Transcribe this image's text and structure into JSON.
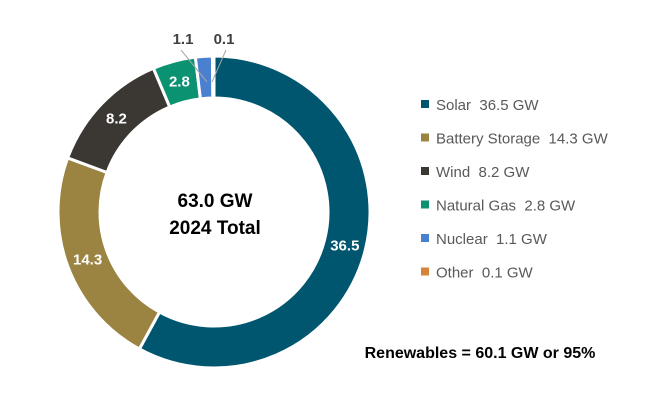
{
  "chart_data": {
    "type": "pie",
    "style": "donut",
    "center_text": [
      "63.0 GW",
      "2024 Total"
    ],
    "categories": [
      "Solar",
      "Battery Storage",
      "Wind",
      "Natural Gas",
      "Nuclear",
      "Other"
    ],
    "values": [
      36.5,
      14.3,
      8.2,
      2.8,
      1.1,
      0.1
    ],
    "data_labels": [
      "36.5",
      "14.3",
      "8.2",
      "2.8",
      "1.1",
      "0.1"
    ],
    "legend": [
      "Solar  36.5 GW",
      "Battery Storage  14.3 GW",
      "Wind  8.2 GW",
      "Natural Gas  2.8 GW",
      "Nuclear  1.1 GW",
      "Other  0.1 GW"
    ],
    "legend_position": "right",
    "colors": [
      "#00566f",
      "#9b8442",
      "#3b3733",
      "#0b9271",
      "#4a80d0",
      "#d4853b"
    ],
    "annotation": "Renewables = 60.1 GW or 95%"
  }
}
